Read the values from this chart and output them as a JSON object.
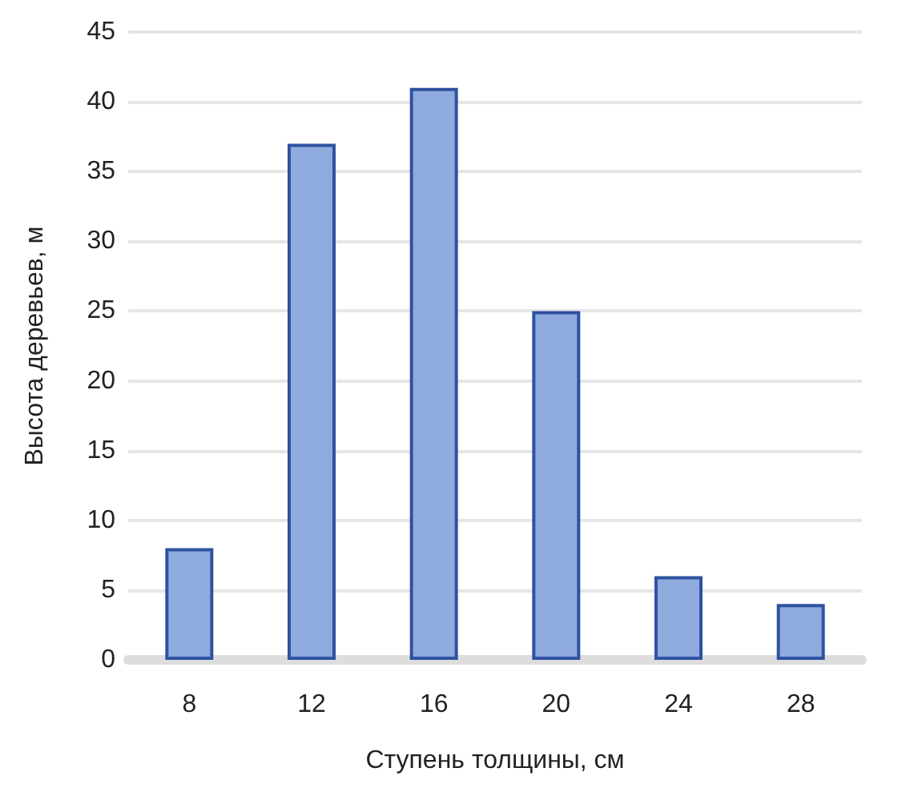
{
  "chart_data": {
    "type": "bar",
    "xlabel": "Ступень толщины, см",
    "ylabel": "Высота деревьев, м",
    "categories": [
      "8",
      "12",
      "16",
      "20",
      "24",
      "28"
    ],
    "values": [
      8,
      37,
      41,
      25,
      6,
      4
    ],
    "color": "#8faadc",
    "ylim": [
      0,
      45
    ],
    "yticks": [
      0,
      5,
      10,
      15,
      20,
      25,
      30,
      35,
      40,
      45
    ],
    "grid": "y"
  }
}
